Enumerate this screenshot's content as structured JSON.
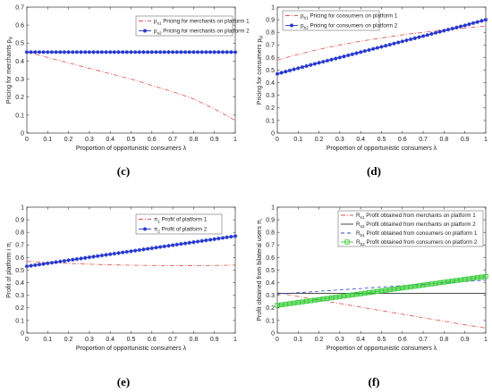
{
  "chart_data": [
    {
      "id": "c",
      "type": "line",
      "panel_label": "(c)",
      "xlabel": "Proportion of opportunistic consumers λ",
      "ylabel": "Pricing for merchants p_si",
      "xlim": [
        0,
        1
      ],
      "ylim": [
        0,
        0.7
      ],
      "xticks": [
        0,
        0.1,
        0.2,
        0.3,
        0.4,
        0.5,
        0.6,
        0.7,
        0.8,
        0.9,
        1
      ],
      "xtick_labels": [
        "0",
        "0.1",
        "0.2",
        "0.3",
        "0.4",
        "0.5",
        "0.6",
        "0.7",
        "0.8",
        "0.9",
        "1"
      ],
      "yticks": [
        0,
        0.1,
        0.2,
        0.3,
        0.4,
        0.5,
        0.6,
        0.7
      ],
      "ytick_labels": [
        "0",
        "0.1",
        "0.2",
        "0.3",
        "0.4",
        "0.5",
        "0.6",
        "0.7"
      ],
      "legend_position": "top-right",
      "series": [
        {
          "name": "p_s1 Pricing for merchants on platform 1",
          "color": "#e05050",
          "style": "dashdot",
          "marker": "none",
          "x": [
            0,
            0.1,
            0.2,
            0.3,
            0.4,
            0.5,
            0.6,
            0.7,
            0.8,
            0.9,
            1
          ],
          "y": [
            0.45,
            0.42,
            0.39,
            0.36,
            0.33,
            0.3,
            0.265,
            0.23,
            0.19,
            0.135,
            0.07
          ]
        },
        {
          "name": "p_s2 Pricing for merchants on platform 2",
          "color": "#2233cc",
          "style": "solid",
          "marker": "star",
          "x": [
            0,
            0.1,
            0.2,
            0.3,
            0.4,
            0.5,
            0.6,
            0.7,
            0.8,
            0.9,
            1
          ],
          "y": [
            0.45,
            0.45,
            0.45,
            0.45,
            0.45,
            0.45,
            0.45,
            0.45,
            0.45,
            0.45,
            0.45
          ]
        }
      ]
    },
    {
      "id": "d",
      "type": "line",
      "panel_label": "(d)",
      "xlabel": "Proportion of opportunistic consumers λ",
      "ylabel": "Pricing for consumers p_bi",
      "xlim": [
        0,
        1
      ],
      "ylim": [
        0,
        1
      ],
      "xticks": [
        0,
        0.1,
        0.2,
        0.3,
        0.4,
        0.5,
        0.6,
        0.7,
        0.8,
        0.9,
        1
      ],
      "xtick_labels": [
        "0",
        "0.1",
        "0.2",
        "0.3",
        "0.4",
        "0.5",
        "0.6",
        "0.7",
        "0.8",
        "0.9",
        "1"
      ],
      "yticks": [
        0,
        0.1,
        0.2,
        0.3,
        0.4,
        0.5,
        0.6,
        0.7,
        0.8,
        0.9,
        1
      ],
      "ytick_labels": [
        "0",
        "0.1",
        "0.2",
        "0.3",
        "0.4",
        "0.5",
        "0.6",
        "0.7",
        "0.8",
        "0.9",
        "1"
      ],
      "legend_position": "top-left",
      "series": [
        {
          "name": "p_b1 Pricing for consumers on platform 1",
          "color": "#e05050",
          "style": "dashdot",
          "marker": "none",
          "x": [
            0,
            0.1,
            0.2,
            0.3,
            0.4,
            0.5,
            0.6,
            0.7,
            0.8,
            0.9,
            1
          ],
          "y": [
            0.58,
            0.625,
            0.665,
            0.7,
            0.73,
            0.755,
            0.78,
            0.8,
            0.82,
            0.835,
            0.85
          ]
        },
        {
          "name": "p_b2 Pricing for consumers on platform 2",
          "color": "#2233cc",
          "style": "solid",
          "marker": "star",
          "x": [
            0,
            0.1,
            0.2,
            0.3,
            0.4,
            0.5,
            0.6,
            0.7,
            0.8,
            0.9,
            1
          ],
          "y": [
            0.47,
            0.515,
            0.558,
            0.6,
            0.643,
            0.685,
            0.728,
            0.77,
            0.813,
            0.855,
            0.9
          ]
        }
      ]
    },
    {
      "id": "e",
      "type": "line",
      "panel_label": "(e)",
      "xlabel": "Proportion of opportunistic consumers λ",
      "ylabel": "Profit of platform i π_i",
      "xlim": [
        0,
        1
      ],
      "ylim": [
        0,
        1
      ],
      "xticks": [
        0,
        0.1,
        0.2,
        0.3,
        0.4,
        0.5,
        0.6,
        0.7,
        0.8,
        0.9,
        1
      ],
      "xtick_labels": [
        "0",
        "0.1",
        "0.2",
        "0.3",
        "0.4",
        "0.5",
        "0.6",
        "0.7",
        "0.8",
        "0.9",
        "1"
      ],
      "yticks": [
        0,
        0.1,
        0.2,
        0.3,
        0.4,
        0.5,
        0.6,
        0.7,
        0.8,
        0.9,
        1
      ],
      "ytick_labels": [
        "0",
        "0.1",
        "0.2",
        "0.3",
        "0.4",
        "0.5",
        "0.6",
        "0.7",
        "0.8",
        "0.9",
        "1"
      ],
      "legend_position": "top-right",
      "series": [
        {
          "name": "π_1 Profit of platform 1",
          "color": "#e05050",
          "style": "dashdot",
          "marker": "none",
          "x": [
            0,
            0.1,
            0.2,
            0.3,
            0.4,
            0.5,
            0.6,
            0.7,
            0.8,
            0.9,
            1
          ],
          "y": [
            0.57,
            0.56,
            0.553,
            0.547,
            0.542,
            0.539,
            0.537,
            0.536,
            0.536,
            0.537,
            0.54
          ]
        },
        {
          "name": "π_2 Profit of platform 2",
          "color": "#2233cc",
          "style": "solid",
          "marker": "star",
          "x": [
            0,
            0.1,
            0.2,
            0.3,
            0.4,
            0.5,
            0.6,
            0.7,
            0.8,
            0.9,
            1
          ],
          "y": [
            0.53,
            0.554,
            0.578,
            0.602,
            0.626,
            0.65,
            0.674,
            0.698,
            0.722,
            0.746,
            0.77
          ]
        }
      ]
    },
    {
      "id": "f",
      "type": "line",
      "panel_label": "(f)",
      "xlabel": "Proportion of opportunistic consumers λ",
      "ylabel": "Profit obtained from bilateral users π_i",
      "xlim": [
        0,
        1
      ],
      "ylim": [
        0,
        1
      ],
      "xticks": [
        0,
        0.1,
        0.2,
        0.3,
        0.4,
        0.5,
        0.6,
        0.7,
        0.8,
        0.9,
        1
      ],
      "xtick_labels": [
        "0",
        "0.1",
        "0.2",
        "0.3",
        "0.4",
        "0.5",
        "0.6",
        "0.7",
        "0.8",
        "0.9",
        "1"
      ],
      "yticks": [
        0,
        0.1,
        0.2,
        0.3,
        0.4,
        0.5,
        0.6,
        0.7,
        0.8,
        0.9,
        1
      ],
      "ytick_labels": [
        "0",
        "0.1",
        "0.2",
        "0.3",
        "0.4",
        "0.5",
        "0.6",
        "0.7",
        "0.8",
        "0.9",
        "1"
      ],
      "legend_position": "top-right",
      "series": [
        {
          "name": "R_s1 Profit obtained from merchants on platform 1",
          "color": "#e05050",
          "style": "dashdot",
          "marker": "none",
          "x": [
            0,
            0.1,
            0.2,
            0.3,
            0.4,
            0.5,
            0.6,
            0.7,
            0.8,
            0.9,
            1
          ],
          "y": [
            0.32,
            0.29,
            0.262,
            0.235,
            0.206,
            0.178,
            0.15,
            0.122,
            0.094,
            0.066,
            0.04
          ]
        },
        {
          "name": "R_s2 Profit obtained from merchants on platform 2",
          "color": "#333333",
          "style": "solid",
          "marker": "none",
          "x": [
            0,
            0.1,
            0.2,
            0.3,
            0.4,
            0.5,
            0.6,
            0.7,
            0.8,
            0.9,
            1
          ],
          "y": [
            0.315,
            0.315,
            0.315,
            0.315,
            0.315,
            0.315,
            0.315,
            0.315,
            0.315,
            0.315,
            0.315
          ]
        },
        {
          "name": "R_b1 Profit obtained from consumers on platform 1",
          "color": "#3344cc",
          "style": "dashed",
          "marker": "none",
          "x": [
            0,
            0.1,
            0.2,
            0.3,
            0.4,
            0.5,
            0.6,
            0.7,
            0.8,
            0.9,
            1
          ],
          "y": [
            0.31,
            0.321,
            0.332,
            0.343,
            0.354,
            0.365,
            0.376,
            0.387,
            0.398,
            0.409,
            0.42
          ]
        },
        {
          "name": "R_b2 Profit obtained from consumers on platform 2",
          "color": "#33cc33",
          "style": "solid",
          "marker": "square",
          "x": [
            0,
            0.1,
            0.2,
            0.3,
            0.4,
            0.5,
            0.6,
            0.7,
            0.8,
            0.9,
            1
          ],
          "y": [
            0.22,
            0.243,
            0.266,
            0.289,
            0.312,
            0.335,
            0.358,
            0.381,
            0.404,
            0.427,
            0.45
          ]
        }
      ]
    }
  ]
}
